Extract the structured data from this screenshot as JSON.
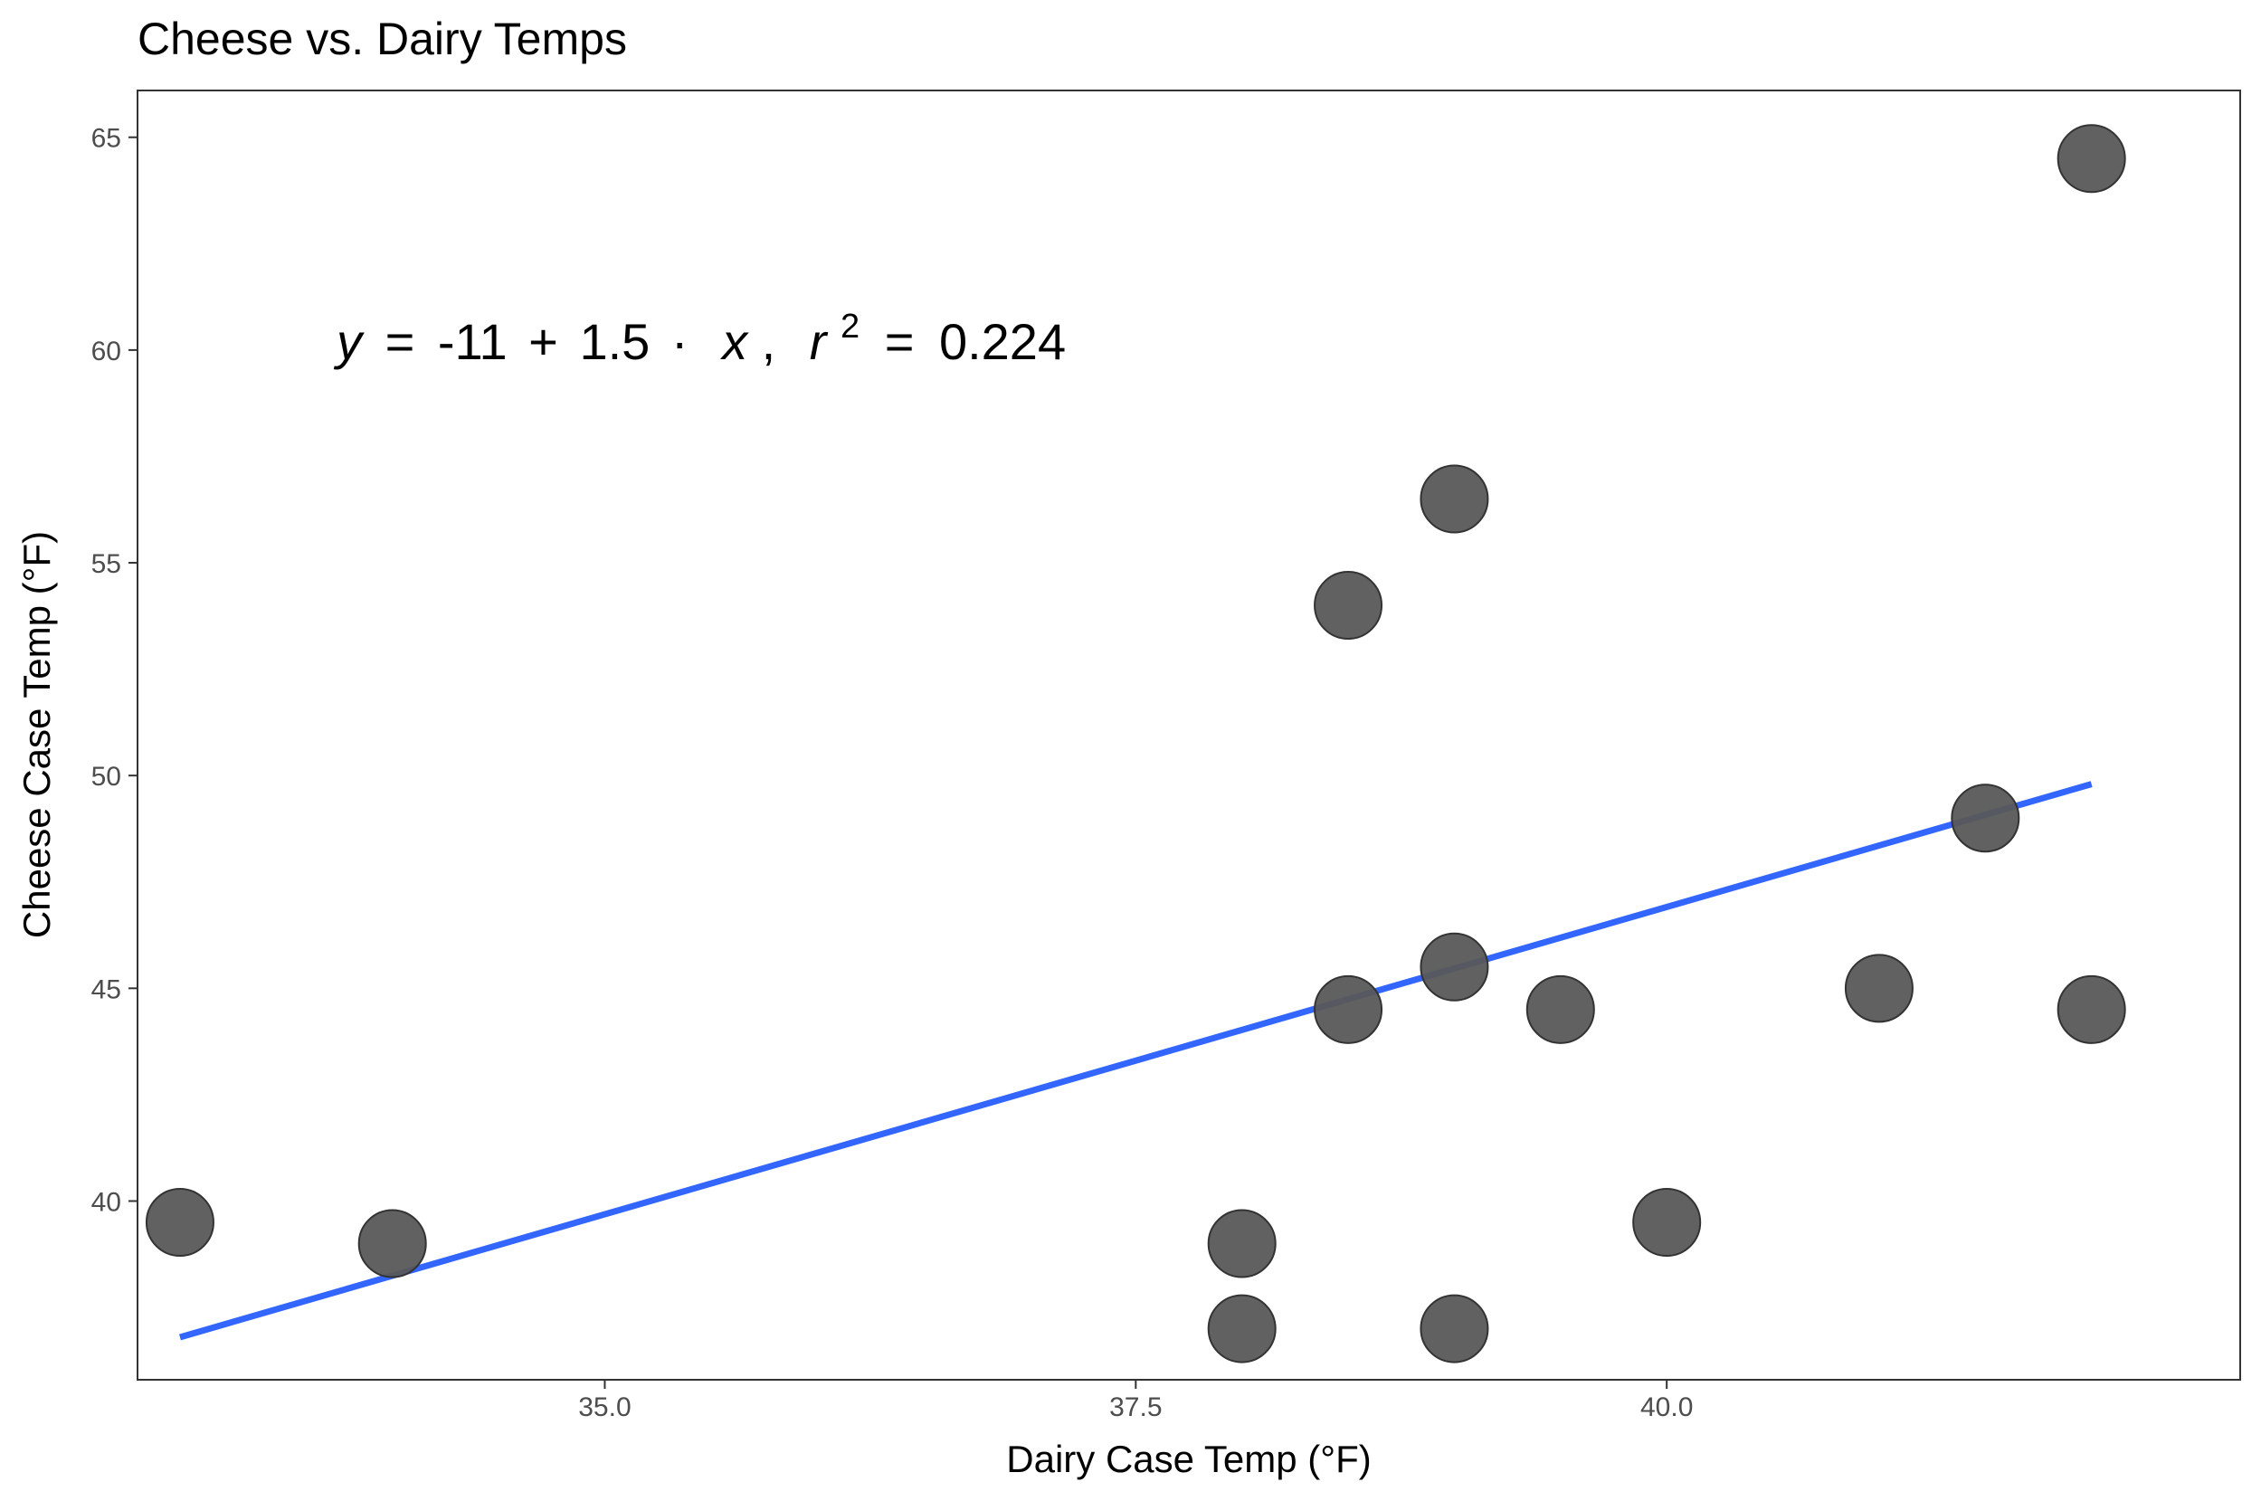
{
  "chart_data": {
    "type": "scatter",
    "title": "Cheese vs. Dairy Temps",
    "xlabel": "Dairy Case Temp (°F)",
    "ylabel": "Cheese Case Temp (°F)",
    "xlim": [
      32.8,
      42.7
    ],
    "ylim": [
      35.8,
      66.1
    ],
    "x_ticks": [
      35.0,
      37.5,
      40.0
    ],
    "x_tick_labels": [
      "35.0",
      "37.5",
      "40.0"
    ],
    "y_ticks": [
      40,
      45,
      50,
      55,
      60,
      65
    ],
    "y_tick_labels": [
      "40",
      "45",
      "50",
      "55",
      "60",
      "65"
    ],
    "grid": false,
    "legend": "none",
    "points": [
      {
        "x": 33.0,
        "y": 39.5
      },
      {
        "x": 34.0,
        "y": 39.0
      },
      {
        "x": 38.0,
        "y": 39.0
      },
      {
        "x": 38.0,
        "y": 37.0
      },
      {
        "x": 38.5,
        "y": 54.0
      },
      {
        "x": 38.5,
        "y": 44.5
      },
      {
        "x": 39.0,
        "y": 56.5
      },
      {
        "x": 39.0,
        "y": 45.5
      },
      {
        "x": 39.0,
        "y": 37.0
      },
      {
        "x": 39.5,
        "y": 44.5
      },
      {
        "x": 40.0,
        "y": 39.5
      },
      {
        "x": 41.0,
        "y": 45.0
      },
      {
        "x": 41.5,
        "y": 49.0
      },
      {
        "x": 42.0,
        "y": 64.5
      },
      {
        "x": 42.0,
        "y": 44.5
      }
    ],
    "fit_line": {
      "intercept": -11,
      "slope": 1.5,
      "x_from": 33.0,
      "x_to": 42.0,
      "y_from": 36.8,
      "y_to": 49.8
    },
    "annotation": {
      "y_sym": "y",
      "eq_sign": "=",
      "intercept_text": "-11",
      "plus": "+",
      "slope_text": "1.5",
      "dot": "·",
      "x_sym": "x",
      "comma": ",",
      "r_sym": "r",
      "sup": "2",
      "r2_eq": "=",
      "r2_value": "0.224"
    },
    "colors": {
      "point_fill": "#595959",
      "point_stroke": "#333333",
      "line": "#3366ff",
      "panel_border": "#333333",
      "tick_text": "#4d4d4d"
    }
  }
}
